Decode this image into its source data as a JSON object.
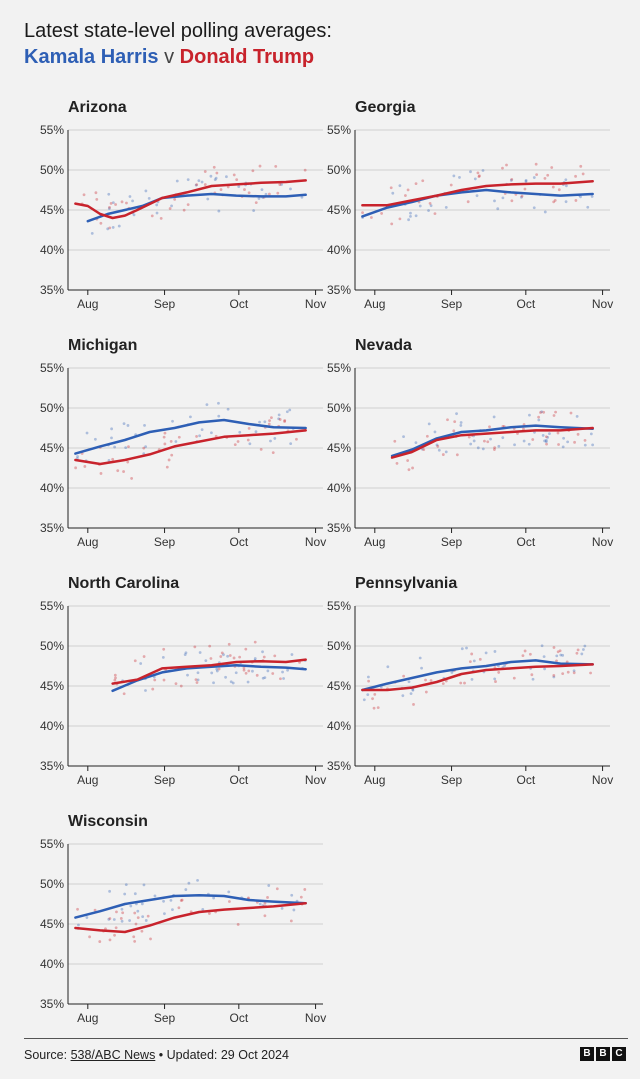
{
  "header": {
    "title": "Latest state-level polling averages:",
    "harris": "Kamala Harris",
    "vs": "v",
    "trump": "Donald Trump"
  },
  "colors": {
    "harris": "#2e5fb5",
    "trump": "#c8232c",
    "grid": "#d0d0d0",
    "axis": "#222222",
    "text": "#333333"
  },
  "footer": {
    "source_label": "Source: ",
    "source_link": "538/ABC News",
    "updated": " • Updated: 29 Oct 2024"
  },
  "logo": [
    "B",
    "B",
    "C"
  ],
  "chart_data": [
    {
      "type": "line",
      "title": "Arizona",
      "x_ticks": [
        "Aug",
        "Sep",
        "Oct",
        "Nov"
      ],
      "y_ticks": [
        "55%",
        "50%",
        "45%",
        "40%",
        "35%"
      ],
      "ylim": [
        35,
        55
      ],
      "xlim_days": [
        -8,
        95
      ],
      "series": [
        {
          "name": "Kamala Harris",
          "x": [
            0,
            8,
            15,
            22,
            30,
            40,
            50,
            60,
            70,
            80,
            88
          ],
          "values": [
            43.6,
            44.5,
            45.0,
            45.5,
            46.5,
            46.8,
            47.0,
            46.8,
            46.7,
            46.7,
            46.9
          ]
        },
        {
          "name": "Donald Trump",
          "x": [
            -5,
            0,
            5,
            10,
            15,
            20,
            30,
            40,
            50,
            60,
            70,
            80,
            88
          ],
          "values": [
            45.8,
            45.5,
            44.5,
            44.0,
            44.3,
            45.0,
            46.5,
            47.2,
            48.0,
            48.2,
            48.4,
            48.5,
            48.7
          ]
        }
      ]
    },
    {
      "type": "line",
      "title": "Georgia",
      "x_ticks": [
        "Aug",
        "Sep",
        "Oct",
        "Nov"
      ],
      "y_ticks": [
        "55%",
        "50%",
        "45%",
        "40%",
        "35%"
      ],
      "ylim": [
        35,
        55
      ],
      "xlim_days": [
        -8,
        95
      ],
      "series": [
        {
          "name": "Kamala Harris",
          "x": [
            -5,
            5,
            15,
            25,
            35,
            45,
            55,
            65,
            75,
            88
          ],
          "values": [
            44.2,
            45.3,
            46.0,
            46.8,
            47.2,
            47.5,
            47.2,
            47.0,
            46.8,
            47.0
          ]
        },
        {
          "name": "Donald Trump",
          "x": [
            -5,
            5,
            15,
            25,
            35,
            45,
            55,
            65,
            75,
            88
          ],
          "values": [
            45.6,
            45.6,
            46.2,
            46.8,
            47.5,
            48.0,
            48.2,
            48.3,
            48.3,
            48.6
          ]
        }
      ]
    },
    {
      "type": "line",
      "title": "Michigan",
      "x_ticks": [
        "Aug",
        "Sep",
        "Oct",
        "Nov"
      ],
      "y_ticks": [
        "55%",
        "50%",
        "45%",
        "40%",
        "35%"
      ],
      "ylim": [
        35,
        55
      ],
      "xlim_days": [
        -8,
        95
      ],
      "series": [
        {
          "name": "Kamala Harris",
          "x": [
            -5,
            5,
            15,
            25,
            35,
            45,
            55,
            65,
            75,
            88
          ],
          "values": [
            44.3,
            45.2,
            46.0,
            47.0,
            47.5,
            48.2,
            48.5,
            48.0,
            47.6,
            47.5
          ]
        },
        {
          "name": "Donald Trump",
          "x": [
            -5,
            5,
            15,
            25,
            35,
            45,
            55,
            65,
            75,
            88
          ],
          "values": [
            43.5,
            43.0,
            43.5,
            44.2,
            45.2,
            45.8,
            46.4,
            46.6,
            46.8,
            47.2
          ]
        }
      ]
    },
    {
      "type": "line",
      "title": "Nevada",
      "x_ticks": [
        "Aug",
        "Sep",
        "Oct",
        "Nov"
      ],
      "y_ticks": [
        "55%",
        "50%",
        "45%",
        "40%",
        "35%"
      ],
      "ylim": [
        35,
        55
      ],
      "xlim_days": [
        -8,
        95
      ],
      "series": [
        {
          "name": "Kamala Harris",
          "x": [
            7,
            15,
            25,
            35,
            45,
            55,
            65,
            75,
            88
          ],
          "values": [
            44.0,
            44.8,
            46.2,
            47.0,
            47.2,
            47.6,
            47.8,
            47.6,
            47.4
          ]
        },
        {
          "name": "Donald Trump",
          "x": [
            7,
            15,
            25,
            35,
            45,
            55,
            65,
            75,
            88
          ],
          "values": [
            43.8,
            44.5,
            46.0,
            46.6,
            46.8,
            47.0,
            47.2,
            47.2,
            47.5
          ]
        }
      ]
    },
    {
      "type": "line",
      "title": "North Carolina",
      "x_ticks": [
        "Aug",
        "Sep",
        "Oct",
        "Nov"
      ],
      "y_ticks": [
        "55%",
        "50%",
        "45%",
        "40%",
        "35%"
      ],
      "ylim": [
        35,
        55
      ],
      "xlim_days": [
        -8,
        95
      ],
      "series": [
        {
          "name": "Kamala Harris",
          "x": [
            10,
            20,
            30,
            40,
            50,
            60,
            70,
            80,
            88
          ],
          "values": [
            44.4,
            45.7,
            46.7,
            47.2,
            47.4,
            47.6,
            47.4,
            47.3,
            47.1
          ]
        },
        {
          "name": "Donald Trump",
          "x": [
            10,
            20,
            30,
            40,
            50,
            60,
            70,
            80,
            88
          ],
          "values": [
            45.3,
            45.8,
            47.2,
            47.4,
            47.6,
            48.0,
            48.1,
            48.0,
            48.3
          ]
        }
      ]
    },
    {
      "type": "line",
      "title": "Pennsylvania",
      "x_ticks": [
        "Aug",
        "Sep",
        "Oct",
        "Nov"
      ],
      "y_ticks": [
        "55%",
        "50%",
        "45%",
        "40%",
        "35%"
      ],
      "ylim": [
        35,
        55
      ],
      "xlim_days": [
        -8,
        95
      ],
      "series": [
        {
          "name": "Kamala Harris",
          "x": [
            -5,
            5,
            15,
            25,
            35,
            45,
            55,
            65,
            75,
            88
          ],
          "values": [
            44.5,
            45.3,
            46.0,
            46.7,
            47.2,
            47.5,
            48.0,
            48.2,
            47.8,
            47.7
          ]
        },
        {
          "name": "Donald Trump",
          "x": [
            -5,
            5,
            15,
            25,
            35,
            45,
            55,
            65,
            75,
            88
          ],
          "values": [
            44.5,
            44.5,
            44.8,
            45.5,
            46.5,
            47.0,
            47.2,
            47.4,
            47.5,
            47.7
          ]
        }
      ]
    },
    {
      "type": "line",
      "title": "Wisconsin",
      "x_ticks": [
        "Aug",
        "Sep",
        "Oct",
        "Nov"
      ],
      "y_ticks": [
        "55%",
        "50%",
        "45%",
        "40%",
        "35%"
      ],
      "ylim": [
        35,
        55
      ],
      "xlim_days": [
        -8,
        95
      ],
      "series": [
        {
          "name": "Kamala Harris",
          "x": [
            -5,
            5,
            15,
            25,
            35,
            45,
            55,
            65,
            75,
            88
          ],
          "values": [
            45.8,
            46.6,
            47.5,
            48.0,
            48.5,
            48.6,
            48.5,
            48.0,
            47.8,
            47.6
          ]
        },
        {
          "name": "Donald Trump",
          "x": [
            -5,
            5,
            15,
            25,
            35,
            45,
            55,
            65,
            75,
            88
          ],
          "values": [
            44.5,
            44.2,
            44.0,
            44.8,
            45.8,
            46.5,
            46.8,
            47.0,
            47.2,
            47.6
          ]
        }
      ]
    }
  ]
}
